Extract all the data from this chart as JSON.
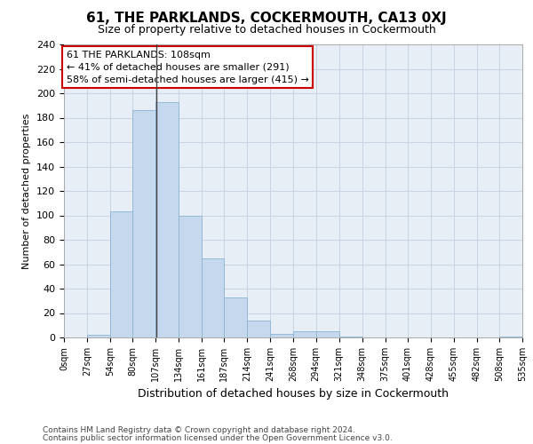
{
  "title": "61, THE PARKLANDS, COCKERMOUTH, CA13 0XJ",
  "subtitle": "Size of property relative to detached houses in Cockermouth",
  "xlabel": "Distribution of detached houses by size in Cockermouth",
  "ylabel": "Number of detached properties",
  "footer_line1": "Contains HM Land Registry data © Crown copyright and database right 2024.",
  "footer_line2": "Contains public sector information licensed under the Open Government Licence v3.0.",
  "annotation_line1": "61 THE PARKLANDS: 108sqm",
  "annotation_line2": "← 41% of detached houses are smaller (291)",
  "annotation_line3": "58% of semi-detached houses are larger (415) →",
  "property_sqm": 108,
  "bar_color": "#c5d8ed",
  "bar_edge_color": "#8ab4d4",
  "highlight_line_color": "#444444",
  "annotation_box_color": "#ffffff",
  "annotation_box_edge": "#cc0000",
  "grid_color": "#c8d4e4",
  "bg_color": "#e8eef6",
  "bins": [
    0,
    27,
    54,
    80,
    107,
    134,
    161,
    187,
    214,
    241,
    268,
    294,
    321,
    348,
    375,
    401,
    428,
    455,
    482,
    508,
    535
  ],
  "counts": [
    0,
    2,
    103,
    186,
    193,
    100,
    65,
    33,
    14,
    3,
    5,
    5,
    1,
    0,
    0,
    0,
    0,
    0,
    0,
    1
  ],
  "ylim": [
    0,
    240
  ],
  "yticks": [
    0,
    20,
    40,
    60,
    80,
    100,
    120,
    140,
    160,
    180,
    200,
    220,
    240
  ],
  "tick_labels": [
    "0sqm",
    "27sqm",
    "54sqm",
    "80sqm",
    "107sqm",
    "134sqm",
    "161sqm",
    "187sqm",
    "214sqm",
    "241sqm",
    "268sqm",
    "294sqm",
    "321sqm",
    "348sqm",
    "375sqm",
    "401sqm",
    "428sqm",
    "455sqm",
    "482sqm",
    "508sqm",
    "535sqm"
  ],
  "title_fontsize": 11,
  "subtitle_fontsize": 9,
  "xlabel_fontsize": 9,
  "ylabel_fontsize": 8,
  "footer_fontsize": 6.5,
  "annotation_fontsize": 8
}
